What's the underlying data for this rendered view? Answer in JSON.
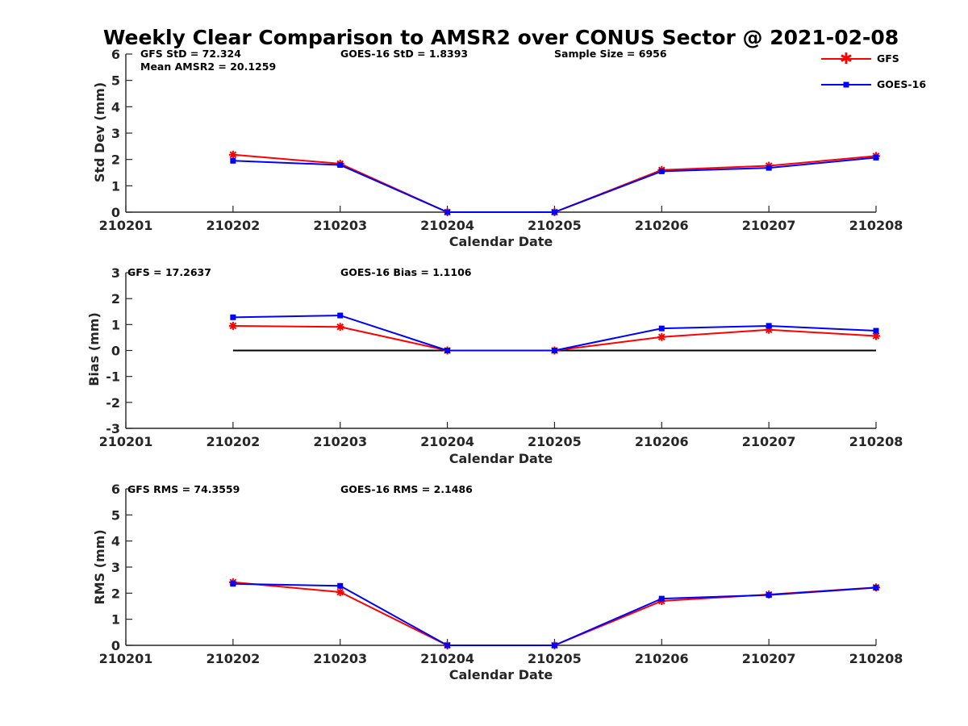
{
  "figure_title": "Weekly Clear Comparison to AMSR2 over CONUS Sector @ 2021-02-08",
  "colors": {
    "gfs": "#ff0000",
    "goes16": "#0000ff",
    "zero_line": "#000000",
    "axis": "#262626"
  },
  "legend": [
    {
      "label": "GFS",
      "marker": "asterisk",
      "color": "#ff0000"
    },
    {
      "label": "GOES-16",
      "marker": "square",
      "color": "#0000ff"
    }
  ],
  "chart_data": [
    {
      "type": "line",
      "id": "std",
      "title": "",
      "xlabel": "Calendar Date",
      "ylabel": "Std Dev (mm)",
      "categories": [
        "210201",
        "210202",
        "210203",
        "210204",
        "210205",
        "210206",
        "210207",
        "210208"
      ],
      "ylim": [
        0,
        6
      ],
      "yticks": [
        "0",
        "1",
        "2",
        "3",
        "4",
        "5",
        "6"
      ],
      "grid": false,
      "legend_position": "top-right",
      "annotations": [
        "GFS StD = 72.324",
        "Mean AMSR2 = 20.1259",
        "GOES-16 StD = 1.8393",
        "Sample Size = 6956"
      ],
      "series": [
        {
          "name": "GFS",
          "values": [
            null,
            2.18,
            1.84,
            0.0,
            0.0,
            1.6,
            1.76,
            2.13
          ]
        },
        {
          "name": "GOES-16",
          "values": [
            null,
            1.95,
            1.79,
            0.0,
            0.0,
            1.55,
            1.68,
            2.07
          ]
        }
      ]
    },
    {
      "type": "line",
      "id": "bias",
      "title": "",
      "xlabel": "Calendar Date",
      "ylabel": "Bias (mm)",
      "categories": [
        "210201",
        "210202",
        "210203",
        "210204",
        "210205",
        "210206",
        "210207",
        "210208"
      ],
      "ylim": [
        -3,
        3
      ],
      "yticks": [
        "-3",
        "-2",
        "-1",
        "0",
        "1",
        "2",
        "3"
      ],
      "grid": false,
      "annotations": [
        "GFS = 17.2637",
        "GOES-16 Bias  = 1.1106"
      ],
      "zero_line": true,
      "series": [
        {
          "name": "GFS",
          "values": [
            null,
            0.95,
            0.91,
            0.0,
            0.0,
            0.52,
            0.8,
            0.56
          ]
        },
        {
          "name": "GOES-16",
          "values": [
            null,
            1.28,
            1.35,
            0.0,
            0.0,
            0.85,
            0.95,
            0.76
          ]
        }
      ]
    },
    {
      "type": "line",
      "id": "rms",
      "title": "",
      "xlabel": "Calendar Date",
      "ylabel": "RMS (mm)",
      "categories": [
        "210201",
        "210202",
        "210203",
        "210204",
        "210205",
        "210206",
        "210207",
        "210208"
      ],
      "ylim": [
        0,
        6
      ],
      "yticks": [
        "0",
        "1",
        "2",
        "3",
        "4",
        "5",
        "6"
      ],
      "grid": false,
      "annotations": [
        "GFS RMS = 74.3559",
        "GOES-16 RMS = 2.1486"
      ],
      "series": [
        {
          "name": "GFS",
          "values": [
            null,
            2.42,
            2.04,
            0.0,
            0.0,
            1.7,
            1.95,
            2.22
          ]
        },
        {
          "name": "GOES-16",
          "values": [
            null,
            2.36,
            2.28,
            0.0,
            0.0,
            1.79,
            1.93,
            2.21
          ]
        }
      ]
    }
  ]
}
